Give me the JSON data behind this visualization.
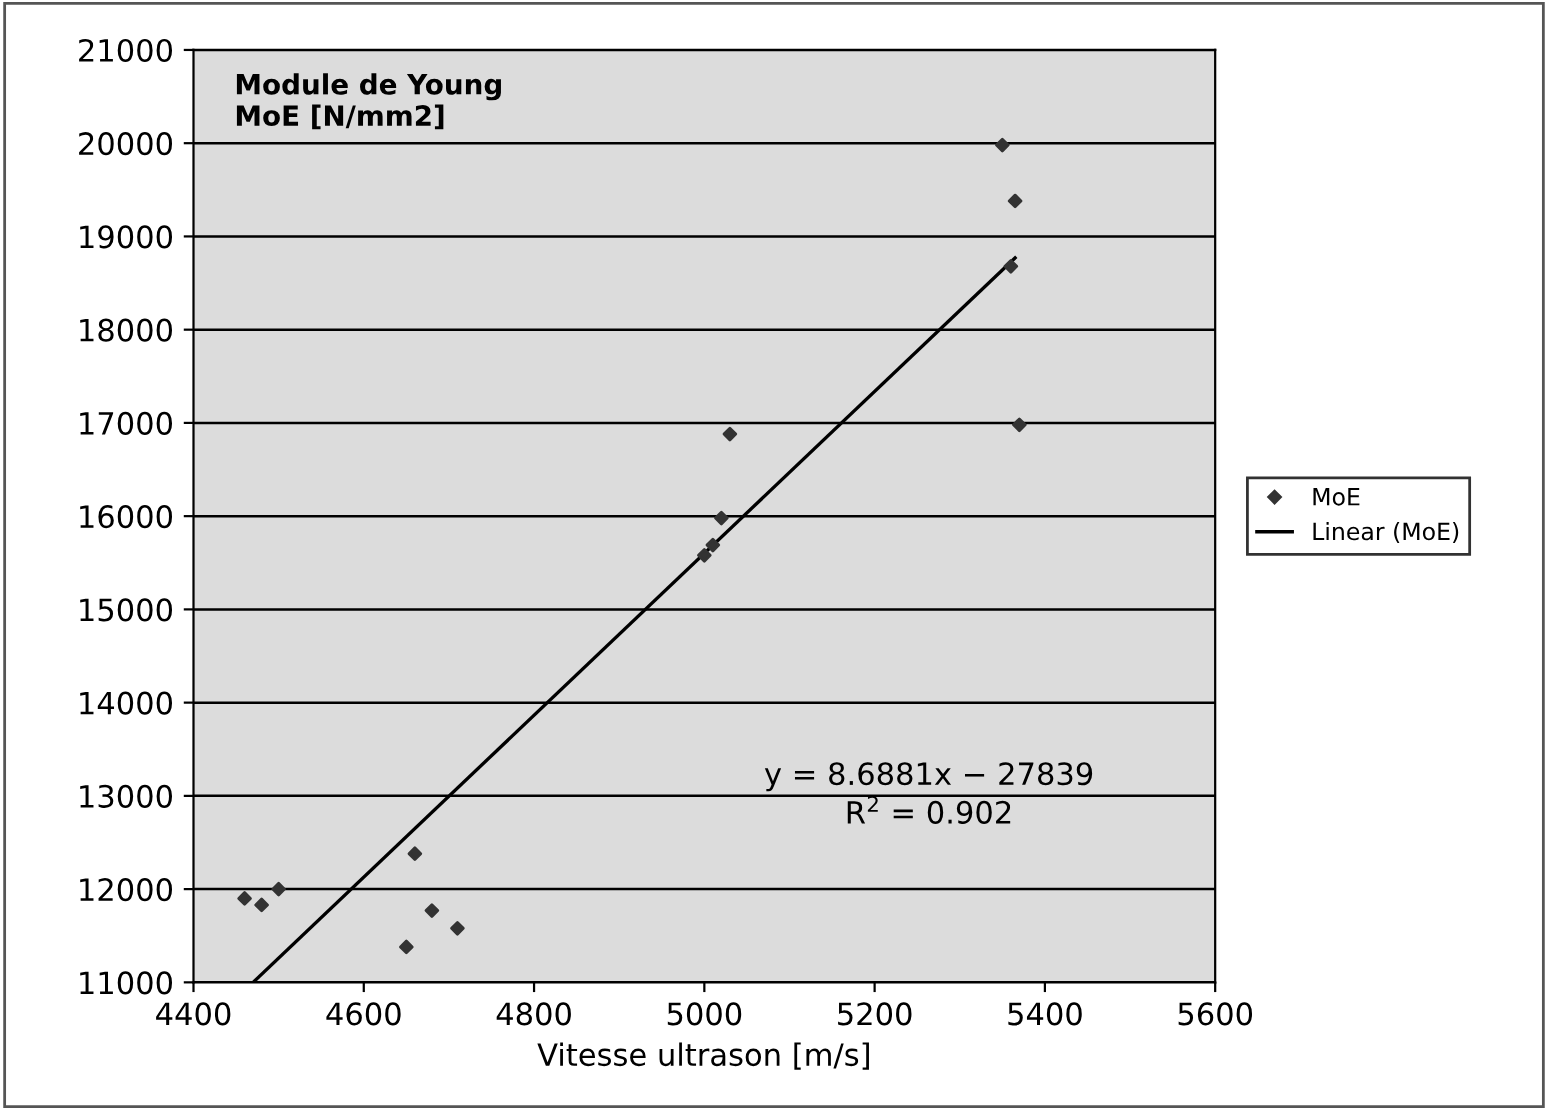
{
  "chart_data": {
    "type": "scatter",
    "title": "Module de Young\nMoE [N/mm2]",
    "xlabel": "Vitesse ultrason [m/s]",
    "xlim": [
      4400,
      5600
    ],
    "xticks": [
      4400,
      4600,
      4800,
      5000,
      5200,
      5400,
      5600
    ],
    "ylim": [
      11000,
      21000
    ],
    "yticks": [
      11000,
      12000,
      13000,
      14000,
      15000,
      16000,
      17000,
      18000,
      19000,
      20000,
      21000
    ],
    "grid": "y",
    "legend": "right",
    "annotations": [
      "y = 8.6881x − 27839\nR$^{2}$ = 0.902"
    ],
    "series": [
      {
        "name": "MoE",
        "marker": "diamond",
        "color": "#333333",
        "x": [
          4460,
          4480,
          4500,
          4650,
          4660,
          4680,
          4710,
          5000,
          5010,
          5020,
          5030,
          5350,
          5360,
          5365,
          5370
        ],
        "values": [
          11900,
          11830,
          12000,
          11380,
          12380,
          11770,
          11580,
          15580,
          15690,
          15980,
          16880,
          19980,
          18680,
          19380,
          16980
        ]
      },
      {
        "name": "Linear (MoE)",
        "type": "line",
        "color": "#000000",
        "x": [
          4470,
          5365
        ],
        "values": [
          11000,
          18770
        ],
        "marker": "none"
      }
    ]
  }
}
